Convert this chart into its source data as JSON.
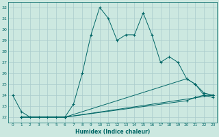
{
  "xlabel": "Humidex (Indice chaleur)",
  "bg_color": "#cce8e0",
  "line_color": "#006666",
  "grid_color": "#aacccc",
  "xlim": [
    -0.5,
    23.5
  ],
  "ylim": [
    21.5,
    32.5
  ],
  "yticks": [
    22,
    23,
    24,
    25,
    26,
    27,
    28,
    29,
    30,
    31,
    32
  ],
  "xticks": [
    0,
    1,
    2,
    3,
    4,
    5,
    6,
    7,
    8,
    9,
    10,
    11,
    12,
    13,
    14,
    15,
    16,
    17,
    18,
    19,
    20,
    21,
    22,
    23
  ],
  "lines": [
    {
      "x": [
        0,
        1,
        2,
        3,
        4,
        5,
        6,
        7,
        8,
        9,
        10,
        11,
        12,
        13,
        14,
        15,
        16,
        17,
        18,
        19,
        20,
        21,
        22,
        23
      ],
      "y": [
        24.0,
        22.5,
        22.0,
        22.0,
        22.0,
        22.0,
        22.0,
        23.2,
        26.0,
        29.5,
        32.0,
        31.0,
        29.0,
        29.5,
        29.5,
        31.5,
        29.5,
        27.0,
        27.5,
        27.0,
        25.5,
        25.0,
        24.0,
        24.0
      ]
    },
    {
      "x": [
        1,
        6,
        23
      ],
      "y": [
        22.0,
        22.0,
        24.0
      ]
    },
    {
      "x": [
        1,
        6,
        20,
        21,
        22,
        23
      ],
      "y": [
        22.0,
        22.0,
        25.5,
        25.0,
        24.2,
        24.0
      ]
    },
    {
      "x": [
        1,
        6,
        20,
        21,
        22,
        23
      ],
      "y": [
        22.0,
        22.0,
        23.5,
        23.8,
        24.0,
        23.8
      ]
    }
  ]
}
